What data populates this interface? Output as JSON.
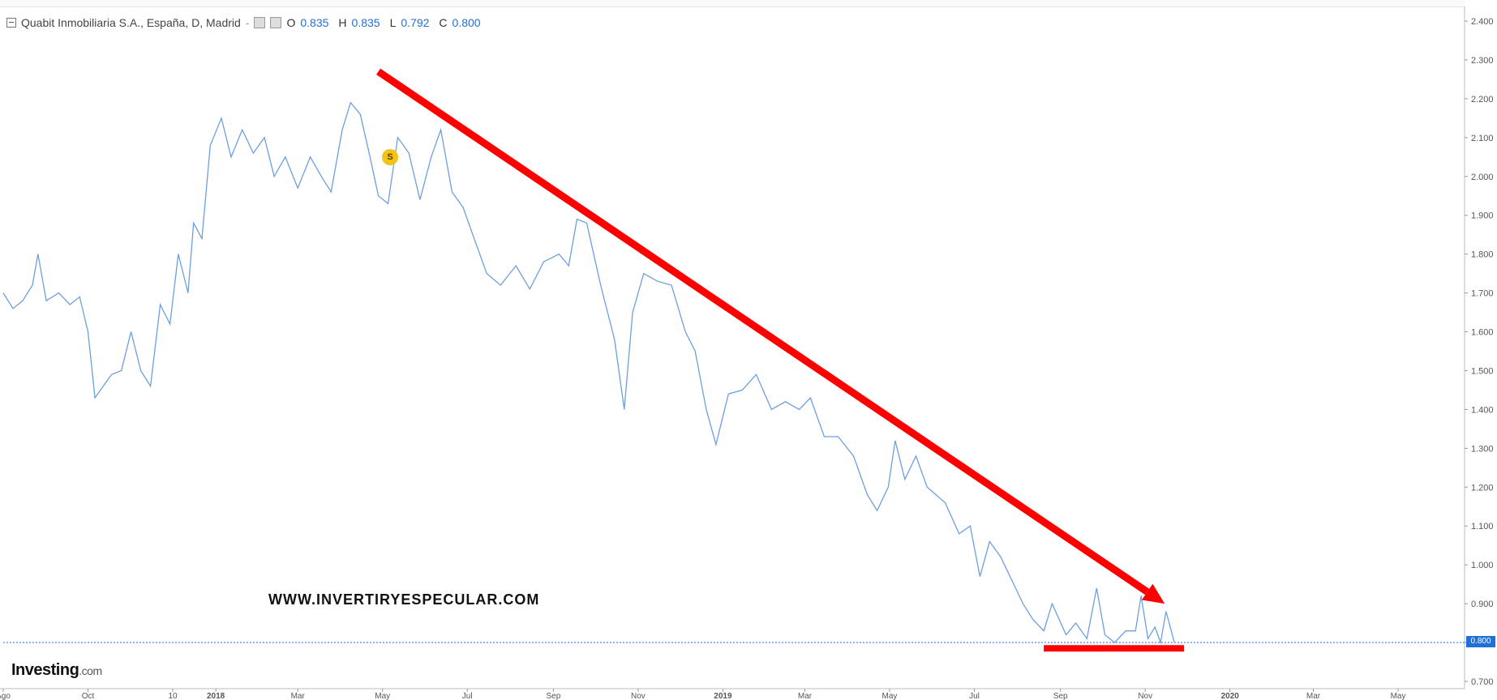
{
  "legend": {
    "symbol": "Quabit Inmobiliaria S.A., España, D, Madrid",
    "separator": "-",
    "open_label": "O",
    "open_value": "0.835",
    "high_label": "H",
    "high_value": "0.835",
    "low_label": "L",
    "low_value": "0.792",
    "close_label": "C",
    "close_value": "0.800"
  },
  "watermark": "WWW.INVERTIRYESPECULAR.COM",
  "brand": {
    "name": "Investing",
    "domain": ".com"
  },
  "event_marker": "S",
  "current_price_tag": "0.800",
  "colors": {
    "line": "#6c9fe0",
    "annotation": "#ff0000",
    "price_tag": "#1e6fd9",
    "event_marker": "#f2c314",
    "axis_text": "#555555"
  },
  "chart_data": {
    "type": "line",
    "title": "Quabit Inmobiliaria S.A., España, D, Madrid",
    "xlabel": "",
    "ylabel": "",
    "x_ticks": [
      "Ago",
      "Oct",
      "10",
      "2018",
      "Mar",
      "May",
      "Jul",
      "Sep",
      "Nov",
      "2019",
      "Mar",
      "May",
      "Jul",
      "Sep",
      "Nov",
      "2020",
      "Mar",
      "May"
    ],
    "y_ticks": [
      "2.400",
      "2.300",
      "2.200",
      "2.100",
      "2.000",
      "1.900",
      "1.800",
      "1.700",
      "1.600",
      "1.500",
      "1.400",
      "1.300",
      "1.200",
      "1.100",
      "1.000",
      "0.900",
      "0.800",
      "0.700"
    ],
    "ylim": [
      0.7,
      2.4
    ],
    "series": [
      {
        "points": [
          [
            "2017-08-01",
            1.7
          ],
          [
            "2017-08-08",
            1.66
          ],
          [
            "2017-08-15",
            1.68
          ],
          [
            "2017-08-22",
            1.72
          ],
          [
            "2017-08-26",
            1.8
          ],
          [
            "2017-09-01",
            1.68
          ],
          [
            "2017-09-10",
            1.7
          ],
          [
            "2017-09-18",
            1.67
          ],
          [
            "2017-09-25",
            1.69
          ],
          [
            "2017-10-01",
            1.6
          ],
          [
            "2017-10-06",
            1.43
          ],
          [
            "2017-10-12",
            1.46
          ],
          [
            "2017-10-18",
            1.49
          ],
          [
            "2017-10-25",
            1.5
          ],
          [
            "2017-11-01",
            1.6
          ],
          [
            "2017-11-08",
            1.5
          ],
          [
            "2017-11-15",
            1.46
          ],
          [
            "2017-11-22",
            1.67
          ],
          [
            "2017-11-29",
            1.62
          ],
          [
            "2017-12-05",
            1.8
          ],
          [
            "2017-12-12",
            1.7
          ],
          [
            "2017-12-16",
            1.88
          ],
          [
            "2017-12-22",
            1.84
          ],
          [
            "2017-12-28",
            2.08
          ],
          [
            "2018-01-05",
            2.15
          ],
          [
            "2018-01-12",
            2.05
          ],
          [
            "2018-01-20",
            2.12
          ],
          [
            "2018-01-28",
            2.06
          ],
          [
            "2018-02-05",
            2.1
          ],
          [
            "2018-02-12",
            2.0
          ],
          [
            "2018-02-20",
            2.05
          ],
          [
            "2018-03-01",
            1.97
          ],
          [
            "2018-03-10",
            2.05
          ],
          [
            "2018-03-18",
            2.0
          ],
          [
            "2018-03-25",
            1.96
          ],
          [
            "2018-04-02",
            2.12
          ],
          [
            "2018-04-08",
            2.19
          ],
          [
            "2018-04-15",
            2.16
          ],
          [
            "2018-04-22",
            2.05
          ],
          [
            "2018-04-28",
            1.95
          ],
          [
            "2018-05-05",
            1.93
          ],
          [
            "2018-05-12",
            2.1
          ],
          [
            "2018-05-20",
            2.06
          ],
          [
            "2018-05-28",
            1.94
          ],
          [
            "2018-06-05",
            2.05
          ],
          [
            "2018-06-12",
            2.12
          ],
          [
            "2018-06-20",
            1.96
          ],
          [
            "2018-06-28",
            1.92
          ],
          [
            "2018-07-05",
            1.85
          ],
          [
            "2018-07-15",
            1.75
          ],
          [
            "2018-07-25",
            1.72
          ],
          [
            "2018-08-05",
            1.77
          ],
          [
            "2018-08-15",
            1.71
          ],
          [
            "2018-08-25",
            1.78
          ],
          [
            "2018-09-05",
            1.8
          ],
          [
            "2018-09-12",
            1.77
          ],
          [
            "2018-09-18",
            1.89
          ],
          [
            "2018-09-25",
            1.88
          ],
          [
            "2018-10-05",
            1.72
          ],
          [
            "2018-10-15",
            1.58
          ],
          [
            "2018-10-22",
            1.4
          ],
          [
            "2018-10-28",
            1.65
          ],
          [
            "2018-11-05",
            1.75
          ],
          [
            "2018-11-15",
            1.73
          ],
          [
            "2018-11-25",
            1.72
          ],
          [
            "2018-12-05",
            1.6
          ],
          [
            "2018-12-12",
            1.55
          ],
          [
            "2018-12-20",
            1.4
          ],
          [
            "2018-12-27",
            1.31
          ],
          [
            "2019-01-05",
            1.44
          ],
          [
            "2019-01-15",
            1.45
          ],
          [
            "2019-01-25",
            1.49
          ],
          [
            "2019-02-05",
            1.4
          ],
          [
            "2019-02-15",
            1.42
          ],
          [
            "2019-02-25",
            1.4
          ],
          [
            "2019-03-05",
            1.43
          ],
          [
            "2019-03-15",
            1.33
          ],
          [
            "2019-03-25",
            1.33
          ],
          [
            "2019-04-05",
            1.28
          ],
          [
            "2019-04-15",
            1.18
          ],
          [
            "2019-04-22",
            1.14
          ],
          [
            "2019-04-30",
            1.2
          ],
          [
            "2019-05-05",
            1.32
          ],
          [
            "2019-05-12",
            1.22
          ],
          [
            "2019-05-20",
            1.28
          ],
          [
            "2019-05-28",
            1.2
          ],
          [
            "2019-06-10",
            1.16
          ],
          [
            "2019-06-20",
            1.08
          ],
          [
            "2019-06-28",
            1.1
          ],
          [
            "2019-07-05",
            0.97
          ],
          [
            "2019-07-12",
            1.06
          ],
          [
            "2019-07-20",
            1.02
          ],
          [
            "2019-07-28",
            0.96
          ],
          [
            "2019-08-05",
            0.9
          ],
          [
            "2019-08-12",
            0.86
          ],
          [
            "2019-08-20",
            0.83
          ],
          [
            "2019-08-26",
            0.9
          ],
          [
            "2019-09-05",
            0.82
          ],
          [
            "2019-09-12",
            0.85
          ],
          [
            "2019-09-20",
            0.81
          ],
          [
            "2019-09-27",
            0.94
          ],
          [
            "2019-10-03",
            0.82
          ],
          [
            "2019-10-10",
            0.8
          ],
          [
            "2019-10-18",
            0.83
          ],
          [
            "2019-10-25",
            0.83
          ],
          [
            "2019-10-29",
            0.92
          ],
          [
            "2019-11-03",
            0.81
          ],
          [
            "2019-11-08",
            0.84
          ],
          [
            "2019-11-12",
            0.8
          ],
          [
            "2019-11-16",
            0.88
          ],
          [
            "2019-11-22",
            0.8
          ]
        ]
      }
    ],
    "annotations": [
      {
        "type": "arrow",
        "from": [
          "2018-04-28",
          2.27
        ],
        "to": [
          "2019-11-15",
          0.9
        ]
      },
      {
        "type": "support_line",
        "from": [
          "2019-08-20",
          0.785
        ],
        "to": [
          "2019-11-29",
          0.785
        ]
      }
    ],
    "current_value": 0.8,
    "grid": false,
    "legend_placement": "top-left"
  }
}
